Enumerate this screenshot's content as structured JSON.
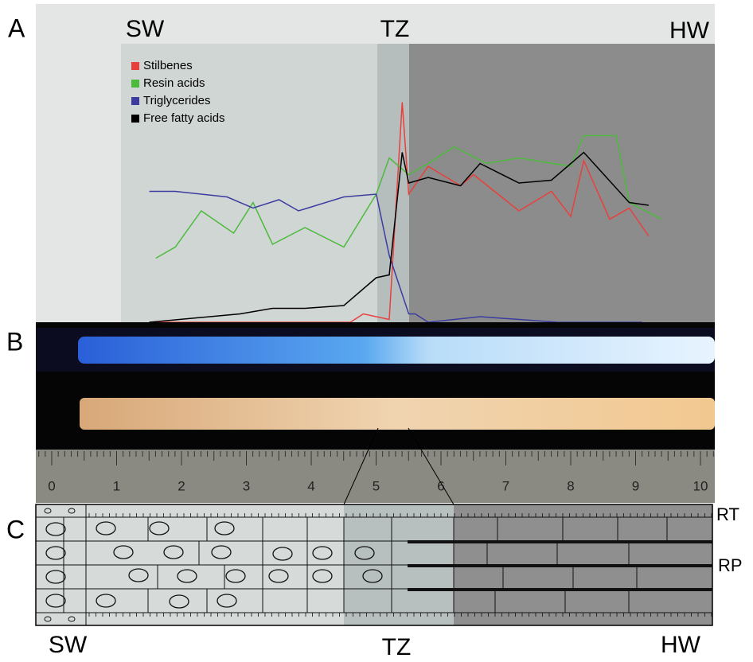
{
  "chart_data": {
    "type": "line",
    "panel_label": "A",
    "zone_labels": [
      "SW",
      "TZ",
      "HW"
    ],
    "xlim": [
      -0.25,
      10.22
    ],
    "ylim": [
      0,
      100
    ],
    "legend": "top-left",
    "series": [
      {
        "name": "Stilbenes",
        "color": "#e8403c",
        "x": [
          1.5,
          4.6,
          4.8,
          5.2,
          5.4,
          5.5,
          5.8,
          6.3,
          6.5,
          7.2,
          7.7,
          8.0,
          8.2,
          8.6,
          8.9,
          9.2
        ],
        "values": [
          0,
          0,
          3,
          1,
          79,
          46,
          56,
          49,
          53,
          40,
          47,
          38,
          58,
          37,
          41,
          31
        ]
      },
      {
        "name": "Resin acids",
        "color": "#4cbb3c",
        "x": [
          1.6,
          1.9,
          2.3,
          2.8,
          3.1,
          3.4,
          3.9,
          4.5,
          5.0,
          5.2,
          5.5,
          5.8,
          6.2,
          6.7,
          7.2,
          8.0,
          8.2,
          8.7,
          8.9,
          9.4
        ],
        "values": [
          23,
          27,
          40,
          32,
          43,
          28,
          34,
          27,
          46,
          59,
          53,
          57,
          63,
          57,
          59,
          56,
          67,
          67,
          43,
          37
        ]
      },
      {
        "name": "Triglycerides",
        "color": "#3c3ca0",
        "x": [
          1.5,
          1.9,
          2.7,
          3.1,
          3.5,
          3.8,
          4.5,
          5.0,
          5.2,
          5.5,
          5.6,
          5.8,
          6.6,
          7.8,
          9.1
        ],
        "values": [
          47,
          47,
          45,
          41,
          44,
          40,
          45,
          46,
          24,
          3,
          3,
          0,
          2,
          0,
          0
        ]
      },
      {
        "name": "Free fatty acids",
        "color": "#000000",
        "x": [
          1.5,
          2.9,
          3.4,
          3.9,
          4.5,
          5.0,
          5.2,
          5.4,
          5.5,
          5.8,
          6.3,
          6.6,
          7.2,
          7.7,
          8.2,
          8.9,
          9.2
        ],
        "values": [
          0,
          3,
          5,
          5,
          6,
          16,
          17,
          61,
          50,
          52,
          49,
          57,
          50,
          51,
          61,
          43,
          42
        ]
      }
    ]
  },
  "panel_b": {
    "panel_label": "B",
    "ruler_labels": [
      0,
      1,
      2,
      3,
      4,
      5,
      6,
      7,
      8,
      9,
      10
    ]
  },
  "panel_c": {
    "panel_label": "C",
    "right_labels": [
      "RT",
      "RP"
    ],
    "bottom_labels": [
      "SW",
      "TZ",
      "HW"
    ]
  }
}
